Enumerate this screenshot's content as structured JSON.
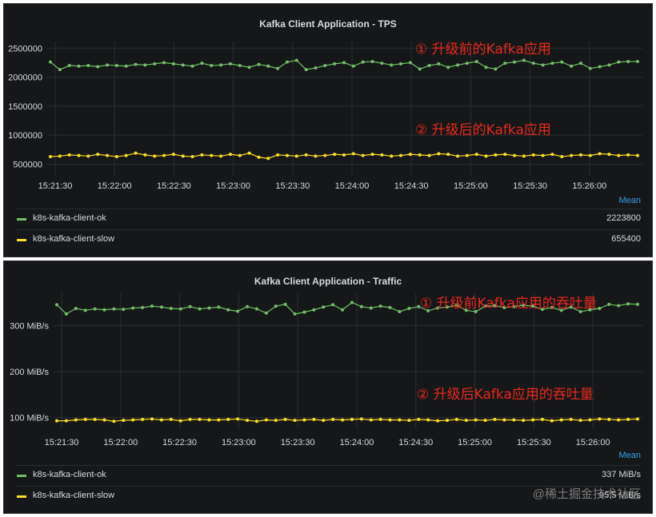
{
  "chart_data": [
    {
      "type": "line",
      "title": "Kafka Client Application - TPS",
      "x_ticks": [
        "15:21:30",
        "15:22:00",
        "15:22:30",
        "15:23:00",
        "15:23:30",
        "15:24:00",
        "15:24:30",
        "15:25:00",
        "15:25:30",
        "15:26:00"
      ],
      "y_ticks": [
        "2500000",
        "2000000",
        "1500000",
        "1000000",
        "500000"
      ],
      "ylim": [
        300000,
        2600000
      ],
      "grid": true,
      "legend_placement": "bottom",
      "legend_header": "Mean",
      "series": [
        {
          "name": "k8s-kafka-client-ok",
          "color": "#73bf69",
          "mean_label": "2223800",
          "values": [
            2260000,
            2130000,
            2200000,
            2190000,
            2200000,
            2180000,
            2210000,
            2200000,
            2190000,
            2220000,
            2210000,
            2230000,
            2250000,
            2230000,
            2210000,
            2190000,
            2240000,
            2200000,
            2210000,
            2230000,
            2200000,
            2170000,
            2220000,
            2190000,
            2150000,
            2260000,
            2290000,
            2130000,
            2160000,
            2200000,
            2230000,
            2250000,
            2190000,
            2260000,
            2270000,
            2240000,
            2210000,
            2230000,
            2250000,
            2140000,
            2200000,
            2230000,
            2170000,
            2210000,
            2240000,
            2270000,
            2170000,
            2140000,
            2240000,
            2260000,
            2290000,
            2240000,
            2210000,
            2240000,
            2260000,
            2190000,
            2240000,
            2150000,
            2180000,
            2210000,
            2260000,
            2270000,
            2270000
          ]
        },
        {
          "name": "k8s-kafka-client-slow",
          "color": "#fade2a",
          "mean_label": "655400",
          "values": [
            630000,
            640000,
            660000,
            650000,
            640000,
            670000,
            650000,
            630000,
            650000,
            690000,
            660000,
            640000,
            650000,
            670000,
            640000,
            630000,
            660000,
            650000,
            640000,
            670000,
            650000,
            690000,
            620000,
            600000,
            660000,
            650000,
            640000,
            660000,
            640000,
            650000,
            670000,
            660000,
            680000,
            650000,
            670000,
            660000,
            640000,
            650000,
            670000,
            660000,
            650000,
            680000,
            670000,
            640000,
            650000,
            670000,
            640000,
            660000,
            670000,
            650000,
            640000,
            660000,
            650000,
            670000,
            630000,
            650000,
            660000,
            650000,
            680000,
            670000,
            650000,
            660000,
            650000
          ]
        }
      ],
      "annotations": [
        "① 升级前的Kafka应用",
        "② 升级后的Kafka应用"
      ]
    },
    {
      "type": "line",
      "title": "Kafka Client Application - Traffic",
      "x_ticks": [
        "15:21:30",
        "15:22:00",
        "15:22:30",
        "15:23:00",
        "15:23:30",
        "15:24:00",
        "15:24:30",
        "15:25:00",
        "15:25:30",
        "15:26:00"
      ],
      "y_ticks": [
        "300 MiB/s",
        "200 MiB/s",
        "100 MiB/s"
      ],
      "ylim": [
        75,
        370
      ],
      "grid": true,
      "legend_placement": "bottom",
      "legend_header": "Mean",
      "series": [
        {
          "name": "k8s-kafka-client-ok",
          "color": "#73bf69",
          "mean_label": "337 MiB/s",
          "values": [
            345,
            325,
            337,
            333,
            336,
            334,
            336,
            335,
            338,
            339,
            342,
            340,
            337,
            336,
            341,
            336,
            338,
            340,
            334,
            331,
            341,
            336,
            327,
            342,
            346,
            325,
            329,
            334,
            340,
            345,
            334,
            350,
            341,
            338,
            342,
            339,
            330,
            337,
            341,
            332,
            338,
            340,
            344,
            333,
            330,
            342,
            343,
            339,
            341,
            344,
            342,
            335,
            339,
            333,
            340,
            330,
            334,
            337,
            346,
            343,
            347,
            346
          ]
        },
        {
          "name": "k8s-kafka-client-slow",
          "color": "#fade2a",
          "mean_label": "95.5 MiB/s",
          "values": [
            93,
            93,
            95,
            96,
            96,
            95,
            92,
            94,
            95,
            96,
            97,
            95,
            96,
            93,
            96,
            96,
            95,
            95,
            96,
            97,
            94,
            92,
            95,
            94,
            96,
            94,
            95,
            96,
            94,
            96,
            95,
            96,
            97,
            95,
            96,
            95,
            95,
            94,
            96,
            95,
            93,
            94,
            96,
            94,
            95,
            94,
            96,
            95,
            95,
            94,
            95,
            96,
            93,
            95,
            96,
            94,
            95,
            97,
            96,
            95,
            96,
            97
          ]
        }
      ],
      "annotations": [
        "① 升级前Kafka应用的吞吐量",
        "② 升级后Kafka应用的吞吐量"
      ]
    }
  ],
  "watermark": "@稀土掘金技术社区"
}
